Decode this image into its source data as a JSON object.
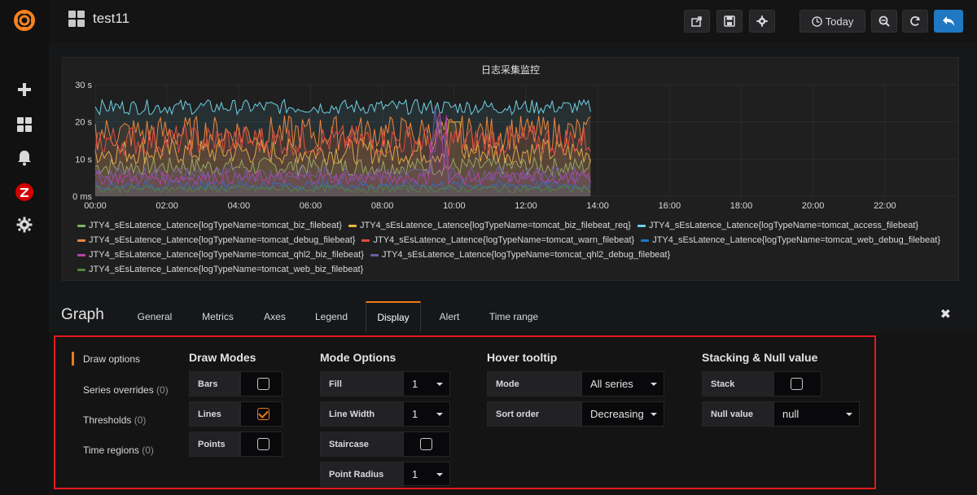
{
  "topbar": {
    "title": "test11",
    "today_label": "Today"
  },
  "chart_data": {
    "type": "line",
    "title": "日志采集监控",
    "y_ticks": [
      "0 ms",
      "10 s",
      "20 s",
      "30 s"
    ],
    "x_ticks": [
      "00:00",
      "02:00",
      "04:00",
      "06:00",
      "08:00",
      "10:00",
      "12:00",
      "14:00",
      "16:00",
      "18:00",
      "20:00",
      "22:00"
    ],
    "ylim": [
      0,
      30
    ],
    "xlim": [
      0,
      24
    ],
    "series": [
      {
        "name": "JTY4_sEsLatence_Latence{logTypeName=tomcat_biz_filebeat}",
        "color": "#7eb26d",
        "level": 8
      },
      {
        "name": "JTY4_sEsLatence_Latence{logTypeName=tomcat_biz_filebeat_req}",
        "color": "#eab839",
        "level": 12
      },
      {
        "name": "JTY4_sEsLatence_Latence{logTypeName=tomcat_access_filebeat}",
        "color": "#6ed0e0",
        "level": 24
      },
      {
        "name": "JTY4_sEsLatence_Latence{logTypeName=tomcat_debug_filebeat}",
        "color": "#ef843c",
        "level": 17
      },
      {
        "name": "JTY4_sEsLatence_Latence{logTypeName=tomcat_warn_filebeat}",
        "color": "#e24d42",
        "level": 15
      },
      {
        "name": "JTY4_sEsLatence_Latence{logTypeName=tomcat_web_debug_filebeat}",
        "color": "#1f78c1",
        "level": 3
      },
      {
        "name": "JTY4_sEsLatence_Latence{logTypeName=tomcat_qhl2_biz_filebeat}",
        "color": "#ba43a9",
        "level": 5
      },
      {
        "name": "JTY4_sEsLatence_Latence{logTypeName=tomcat_qhl2_debug_filebeat}",
        "color": "#705da0",
        "level": 6
      },
      {
        "name": "JTY4_sEsLatence_Latence{logTypeName=tomcat_web_biz_filebeat}",
        "color": "#508642",
        "level": 2
      }
    ],
    "data_end_hour": 13.8
  },
  "editor": {
    "title": "Graph",
    "tabs": [
      "General",
      "Metrics",
      "Axes",
      "Legend",
      "Display",
      "Alert",
      "Time range"
    ],
    "active_tab": "Display",
    "close": "✖"
  },
  "display": {
    "subnav": [
      {
        "label": "Draw options",
        "count": ""
      },
      {
        "label": "Series overrides",
        "count": "(0)"
      },
      {
        "label": "Thresholds",
        "count": "(0)"
      },
      {
        "label": "Time regions",
        "count": "(0)"
      }
    ],
    "draw_modes": {
      "title": "Draw Modes",
      "bars": "Bars",
      "lines": "Lines",
      "points": "Points",
      "bars_checked": false,
      "lines_checked": true,
      "points_checked": false
    },
    "mode_options": {
      "title": "Mode Options",
      "fill": "Fill",
      "fill_value": "1",
      "line_width": "Line Width",
      "line_width_value": "1",
      "staircase": "Staircase",
      "staircase_checked": false,
      "point_radius": "Point Radius",
      "point_radius_value": "1"
    },
    "hover_tooltip": {
      "title": "Hover tooltip",
      "mode": "Mode",
      "mode_value": "All series",
      "sort_order": "Sort order",
      "sort_order_value": "Decreasing"
    },
    "stacking": {
      "title": "Stacking & Null value",
      "stack": "Stack",
      "stack_checked": false,
      "null_value": "Null value",
      "null_value_value": "null"
    }
  }
}
